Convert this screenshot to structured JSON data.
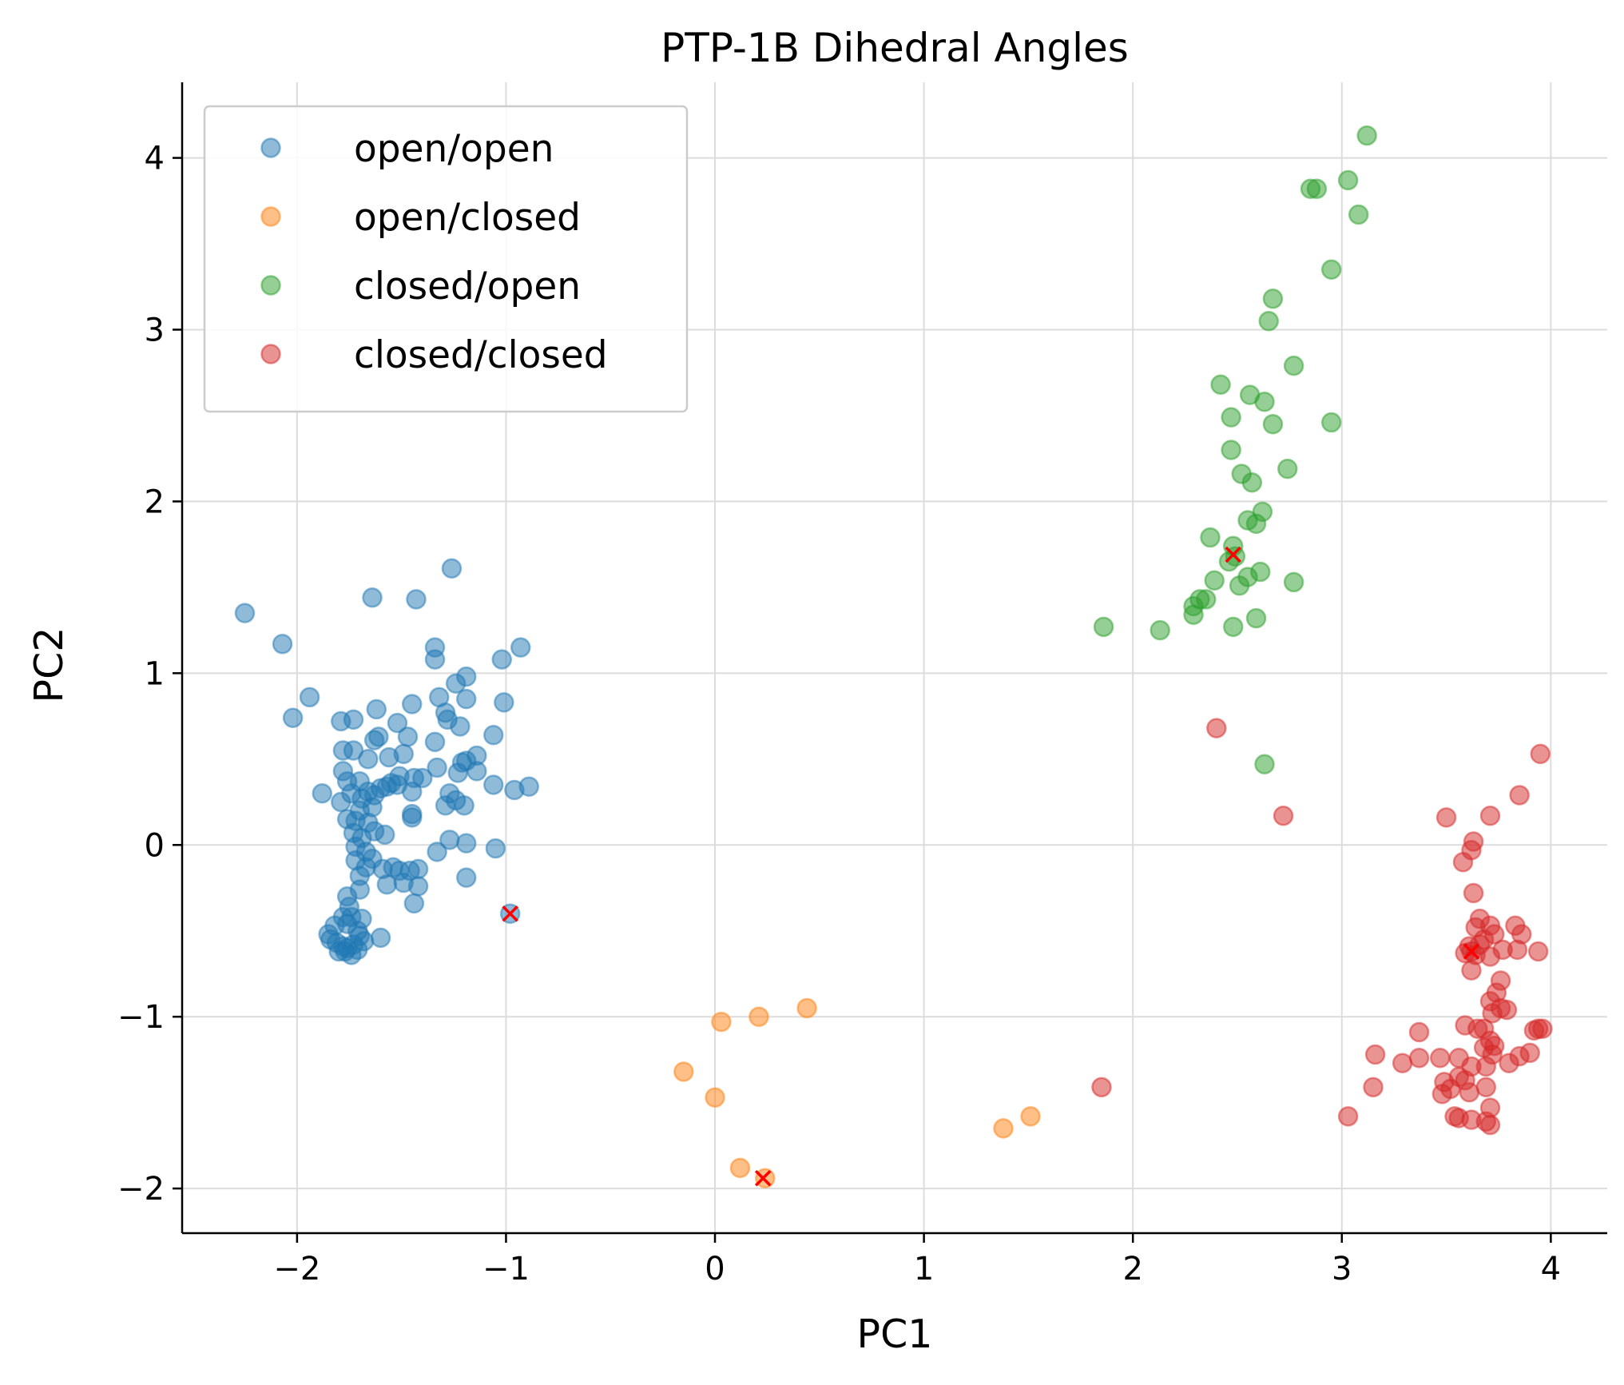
{
  "chart_data": {
    "type": "scatter",
    "title": "PTP-1B Dihedral Angles",
    "xlabel": "PC1",
    "ylabel": "PC2",
    "xlim": [
      -2.55,
      4.27
    ],
    "ylim": [
      -2.26,
      4.44
    ],
    "grid": true,
    "legend_position": "top-left",
    "x_ticks": [
      -2,
      -1,
      0,
      1,
      2,
      3,
      4
    ],
    "y_ticks": [
      -2,
      -1,
      0,
      1,
      2,
      3,
      4
    ],
    "x_tick_labels": [
      "−2",
      "−1",
      "0",
      "1",
      "2",
      "3",
      "4"
    ],
    "y_tick_labels": [
      "−2",
      "−1",
      "0",
      "1",
      "2",
      "3",
      "4"
    ],
    "series": [
      {
        "name": "open/open",
        "color": "#1f77b4",
        "points": [
          [
            -2.25,
            1.35
          ],
          [
            -2.07,
            1.17
          ],
          [
            -1.94,
            0.86
          ],
          [
            -2.02,
            0.74
          ],
          [
            -1.64,
            1.44
          ],
          [
            -1.43,
            1.43
          ],
          [
            -1.26,
            1.61
          ],
          [
            -1.34,
            1.15
          ],
          [
            -1.34,
            1.08
          ],
          [
            -1.02,
            1.08
          ],
          [
            -0.93,
            1.15
          ],
          [
            -1.19,
            0.98
          ],
          [
            -1.32,
            0.86
          ],
          [
            -1.19,
            0.85
          ],
          [
            -1.01,
            0.83
          ],
          [
            -1.24,
            0.94
          ],
          [
            -1.29,
            0.77
          ],
          [
            -1.28,
            0.73
          ],
          [
            -1.22,
            0.69
          ],
          [
            -1.45,
            0.82
          ],
          [
            -1.52,
            0.71
          ],
          [
            -1.62,
            0.79
          ],
          [
            -1.73,
            0.73
          ],
          [
            -1.79,
            0.72
          ],
          [
            -1.06,
            0.64
          ],
          [
            -1.14,
            0.52
          ],
          [
            -1.34,
            0.6
          ],
          [
            -1.21,
            0.48
          ],
          [
            -1.19,
            0.49
          ],
          [
            -1.14,
            0.43
          ],
          [
            -1.06,
            0.35
          ],
          [
            -0.96,
            0.32
          ],
          [
            -0.89,
            0.34
          ],
          [
            -1.73,
            0.55
          ],
          [
            -1.78,
            0.55
          ],
          [
            -1.63,
            0.61
          ],
          [
            -1.61,
            0.63
          ],
          [
            -1.49,
            0.53
          ],
          [
            -1.47,
            0.63
          ],
          [
            -1.56,
            0.51
          ],
          [
            -1.66,
            0.5
          ],
          [
            -1.78,
            0.43
          ],
          [
            -1.7,
            0.37
          ],
          [
            -1.66,
            0.31
          ],
          [
            -1.6,
            0.33
          ],
          [
            -1.55,
            0.36
          ],
          [
            -1.51,
            0.4
          ],
          [
            -1.44,
            0.39
          ],
          [
            -1.4,
            0.39
          ],
          [
            -1.33,
            0.45
          ],
          [
            -1.23,
            0.42
          ],
          [
            -1.27,
            0.3
          ],
          [
            -1.24,
            0.26
          ],
          [
            -1.2,
            0.23
          ],
          [
            -1.29,
            0.23
          ],
          [
            -1.45,
            0.31
          ],
          [
            -1.52,
            0.35
          ],
          [
            -1.57,
            0.34
          ],
          [
            -1.63,
            0.29
          ],
          [
            -1.69,
            0.27
          ],
          [
            -1.74,
            0.3
          ],
          [
            -1.79,
            0.25
          ],
          [
            -1.88,
            0.3
          ],
          [
            -1.76,
            0.37
          ],
          [
            -1.7,
            0.2
          ],
          [
            -1.64,
            0.22
          ],
          [
            -1.76,
            0.15
          ],
          [
            -1.72,
            0.14
          ],
          [
            -1.66,
            0.13
          ],
          [
            -1.63,
            0.08
          ],
          [
            -1.58,
            0.06
          ],
          [
            -1.73,
            0.07
          ],
          [
            -1.69,
            0.04
          ],
          [
            -1.72,
            -0.01
          ],
          [
            -1.67,
            -0.04
          ],
          [
            -1.72,
            -0.09
          ],
          [
            -1.64,
            -0.08
          ],
          [
            -1.67,
            -0.13
          ],
          [
            -1.7,
            -0.18
          ],
          [
            -1.59,
            -0.14
          ],
          [
            -1.54,
            -0.13
          ],
          [
            -1.51,
            -0.15
          ],
          [
            -1.46,
            -0.15
          ],
          [
            -1.42,
            -0.14
          ],
          [
            -1.57,
            -0.23
          ],
          [
            -1.49,
            -0.22
          ],
          [
            -1.42,
            -0.24
          ],
          [
            -1.44,
            -0.34
          ],
          [
            -1.45,
            0.18
          ],
          [
            -1.45,
            0.16
          ],
          [
            -1.27,
            0.03
          ],
          [
            -1.33,
            -0.04
          ],
          [
            -1.19,
            0.01
          ],
          [
            -1.19,
            -0.19
          ],
          [
            -1.05,
            -0.02
          ],
          [
            -1.7,
            -0.26
          ],
          [
            -1.76,
            -0.3
          ],
          [
            -1.75,
            -0.36
          ],
          [
            -1.78,
            -0.42
          ],
          [
            -1.82,
            -0.47
          ],
          [
            -1.85,
            -0.52
          ],
          [
            -1.84,
            -0.55
          ],
          [
            -1.81,
            -0.57
          ],
          [
            -1.78,
            -0.59
          ],
          [
            -1.76,
            -0.6
          ],
          [
            -1.73,
            -0.58
          ],
          [
            -1.7,
            -0.53
          ],
          [
            -1.71,
            -0.5
          ],
          [
            -1.76,
            -0.46
          ],
          [
            -1.74,
            -0.42
          ],
          [
            -1.69,
            -0.43
          ],
          [
            -1.77,
            -0.62
          ],
          [
            -1.74,
            -0.64
          ],
          [
            -1.71,
            -0.61
          ],
          [
            -1.68,
            -0.56
          ],
          [
            -1.6,
            -0.54
          ],
          [
            -1.8,
            -0.62
          ],
          [
            -0.98,
            -0.4
          ]
        ]
      },
      {
        "name": "open/closed",
        "color": "#ff7f0e",
        "points": [
          [
            -0.15,
            -1.32
          ],
          [
            0.0,
            -1.47
          ],
          [
            0.03,
            -1.03
          ],
          [
            0.21,
            -1.0
          ],
          [
            0.44,
            -0.95
          ],
          [
            0.12,
            -1.88
          ],
          [
            0.24,
            -1.94
          ],
          [
            1.38,
            -1.65
          ],
          [
            1.51,
            -1.58
          ]
        ]
      },
      {
        "name": "closed/open",
        "color": "#2ca02c",
        "points": [
          [
            3.12,
            4.13
          ],
          [
            2.85,
            3.82
          ],
          [
            2.88,
            3.82
          ],
          [
            3.03,
            3.87
          ],
          [
            3.08,
            3.67
          ],
          [
            2.95,
            3.35
          ],
          [
            2.67,
            3.18
          ],
          [
            2.65,
            3.05
          ],
          [
            2.77,
            2.79
          ],
          [
            2.42,
            2.68
          ],
          [
            2.56,
            2.62
          ],
          [
            2.63,
            2.58
          ],
          [
            2.47,
            2.49
          ],
          [
            2.67,
            2.45
          ],
          [
            2.95,
            2.46
          ],
          [
            2.47,
            2.3
          ],
          [
            2.52,
            2.16
          ],
          [
            2.57,
            2.11
          ],
          [
            2.74,
            2.19
          ],
          [
            2.62,
            1.94
          ],
          [
            2.55,
            1.89
          ],
          [
            2.59,
            1.87
          ],
          [
            2.37,
            1.79
          ],
          [
            2.48,
            1.74
          ],
          [
            2.46,
            1.65
          ],
          [
            2.39,
            1.54
          ],
          [
            2.51,
            1.51
          ],
          [
            2.55,
            1.56
          ],
          [
            2.61,
            1.59
          ],
          [
            2.77,
            1.53
          ],
          [
            2.29,
            1.39
          ],
          [
            2.32,
            1.43
          ],
          [
            2.35,
            1.43
          ],
          [
            2.29,
            1.34
          ],
          [
            2.48,
            1.27
          ],
          [
            2.59,
            1.32
          ],
          [
            2.13,
            1.25
          ],
          [
            1.86,
            1.27
          ],
          [
            2.63,
            0.47
          ],
          [
            2.49,
            1.68
          ]
        ]
      },
      {
        "name": "closed/closed",
        "color": "#d62728",
        "points": [
          [
            2.4,
            0.68
          ],
          [
            2.72,
            0.17
          ],
          [
            3.95,
            0.53
          ],
          [
            3.85,
            0.29
          ],
          [
            3.71,
            0.17
          ],
          [
            3.5,
            0.16
          ],
          [
            3.63,
            0.02
          ],
          [
            3.62,
            -0.03
          ],
          [
            3.58,
            -0.1
          ],
          [
            3.63,
            -0.28
          ],
          [
            3.66,
            -0.43
          ],
          [
            3.64,
            -0.48
          ],
          [
            3.71,
            -0.47
          ],
          [
            3.73,
            -0.52
          ],
          [
            3.68,
            -0.55
          ],
          [
            3.83,
            -0.47
          ],
          [
            3.86,
            -0.52
          ],
          [
            3.66,
            -0.58
          ],
          [
            3.61,
            -0.59
          ],
          [
            3.59,
            -0.63
          ],
          [
            3.64,
            -0.64
          ],
          [
            3.71,
            -0.65
          ],
          [
            3.77,
            -0.61
          ],
          [
            3.84,
            -0.61
          ],
          [
            3.94,
            -0.62
          ],
          [
            3.62,
            -0.73
          ],
          [
            3.76,
            -0.79
          ],
          [
            3.74,
            -0.86
          ],
          [
            3.71,
            -0.91
          ],
          [
            3.76,
            -0.95
          ],
          [
            3.72,
            -0.98
          ],
          [
            3.79,
            -0.96
          ],
          [
            3.37,
            -1.09
          ],
          [
            3.59,
            -1.05
          ],
          [
            3.65,
            -1.07
          ],
          [
            3.68,
            -1.07
          ],
          [
            3.71,
            -1.14
          ],
          [
            3.68,
            -1.18
          ],
          [
            3.73,
            -1.17
          ],
          [
            3.72,
            -1.22
          ],
          [
            3.94,
            -1.07
          ],
          [
            3.92,
            -1.08
          ],
          [
            3.96,
            -1.07
          ],
          [
            3.9,
            -1.21
          ],
          [
            3.85,
            -1.23
          ],
          [
            3.8,
            -1.27
          ],
          [
            3.69,
            -1.29
          ],
          [
            3.62,
            -1.29
          ],
          [
            3.56,
            -1.35
          ],
          [
            3.47,
            -1.24
          ],
          [
            3.16,
            -1.22
          ],
          [
            3.29,
            -1.27
          ],
          [
            3.37,
            -1.24
          ],
          [
            3.56,
            -1.24
          ],
          [
            3.59,
            -1.37
          ],
          [
            3.52,
            -1.42
          ],
          [
            3.49,
            -1.38
          ],
          [
            3.48,
            -1.45
          ],
          [
            3.61,
            -1.44
          ],
          [
            3.69,
            -1.41
          ],
          [
            3.71,
            -1.53
          ],
          [
            3.15,
            -1.41
          ],
          [
            3.03,
            -1.58
          ],
          [
            3.54,
            -1.58
          ],
          [
            3.56,
            -1.59
          ],
          [
            3.62,
            -1.6
          ],
          [
            3.69,
            -1.61
          ],
          [
            3.71,
            -1.63
          ],
          [
            1.85,
            -1.41
          ],
          [
            3.62,
            -0.62
          ]
        ]
      }
    ],
    "markers": {
      "style": "x",
      "color": "#ff0000",
      "points": [
        [
          -0.98,
          -0.4
        ],
        [
          0.23,
          -1.94
        ],
        [
          2.48,
          1.69
        ],
        [
          3.62,
          -0.62
        ]
      ]
    }
  }
}
